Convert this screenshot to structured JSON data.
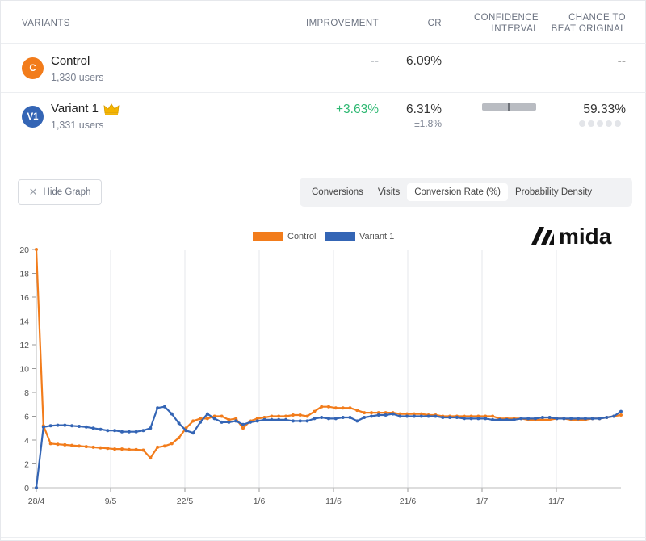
{
  "table": {
    "headers": {
      "variants": "VARIANTS",
      "improvement": "IMPROVEMENT",
      "cr": "CR",
      "ci_line1": "CONFIDENCE",
      "ci_line2": "INTERVAL",
      "chance_line1": "CHANCE TO",
      "chance_line2": "BEAT ORIGINAL"
    },
    "rows": [
      {
        "avatar": "C",
        "avatar_color": "#f27c1b",
        "name": "Control",
        "users": "1,330 users",
        "improvement": "--",
        "cr": "6.09%",
        "chance": "--"
      },
      {
        "avatar": "V1",
        "avatar_color": "#3465b5",
        "name": "Variant 1",
        "winner_icon": "crown-icon",
        "users": "1,331 users",
        "improvement": "+3.63%",
        "improvement_color": "#2eb872",
        "cr": "6.31%",
        "cr_margin": "±1.8%",
        "chance": "59.33%"
      }
    ]
  },
  "controls": {
    "hide_graph": "Hide Graph",
    "tabs": [
      "Conversions",
      "Visits",
      "Conversion Rate (%)",
      "Probability Density"
    ],
    "active_tab": "Conversion Rate (%)"
  },
  "brand": {
    "logo_text": "mida"
  },
  "chart_data": {
    "type": "line",
    "ylim": [
      0,
      20
    ],
    "yticks": [
      0,
      2,
      4,
      6,
      8,
      10,
      12,
      14,
      16,
      18,
      20
    ],
    "xtick_labels": [
      "28/4",
      "9/5",
      "22/5",
      "1/6",
      "11/6",
      "21/6",
      "1/7",
      "11/7"
    ],
    "legend_position": "top",
    "grid": "vertical",
    "series": [
      {
        "name": "Control",
        "color": "#f27c1b",
        "values": [
          20,
          5.2,
          3.7,
          3.65,
          3.6,
          3.55,
          3.5,
          3.45,
          3.4,
          3.35,
          3.3,
          3.25,
          3.25,
          3.2,
          3.2,
          3.15,
          2.5,
          3.4,
          3.5,
          3.7,
          4.2,
          5.0,
          5.6,
          5.8,
          5.8,
          6.0,
          6.0,
          5.7,
          5.8,
          5.0,
          5.6,
          5.8,
          5.9,
          6.0,
          6.0,
          6.0,
          6.1,
          6.1,
          6.0,
          6.4,
          6.8,
          6.8,
          6.7,
          6.7,
          6.7,
          6.5,
          6.3,
          6.3,
          6.3,
          6.3,
          6.3,
          6.2,
          6.2,
          6.2,
          6.2,
          6.1,
          6.1,
          6.0,
          6.0,
          6.0,
          6.0,
          6.0,
          6.0,
          6.0,
          6.0,
          5.8,
          5.8,
          5.8,
          5.8,
          5.7,
          5.7,
          5.7,
          5.7,
          5.8,
          5.8,
          5.7,
          5.7,
          5.7,
          5.8,
          5.8,
          5.9,
          6.0,
          6.1
        ]
      },
      {
        "name": "Variant 1",
        "color": "#3465b5",
        "values": [
          0,
          5.1,
          5.2,
          5.25,
          5.25,
          5.2,
          5.15,
          5.1,
          5.0,
          4.9,
          4.8,
          4.8,
          4.7,
          4.7,
          4.7,
          4.8,
          5.0,
          6.7,
          6.8,
          6.2,
          5.4,
          4.8,
          4.6,
          5.5,
          6.2,
          5.8,
          5.5,
          5.5,
          5.6,
          5.3,
          5.5,
          5.6,
          5.7,
          5.7,
          5.7,
          5.7,
          5.6,
          5.6,
          5.6,
          5.8,
          5.9,
          5.8,
          5.8,
          5.9,
          5.9,
          5.6,
          5.9,
          6.0,
          6.1,
          6.1,
          6.2,
          6.0,
          6.0,
          6.0,
          6.0,
          6.0,
          6.0,
          5.9,
          5.9,
          5.9,
          5.8,
          5.8,
          5.8,
          5.8,
          5.7,
          5.7,
          5.7,
          5.7,
          5.8,
          5.8,
          5.8,
          5.9,
          5.9,
          5.8,
          5.8,
          5.8,
          5.8,
          5.8,
          5.8,
          5.8,
          5.9,
          6.0,
          6.4
        ]
      }
    ]
  }
}
